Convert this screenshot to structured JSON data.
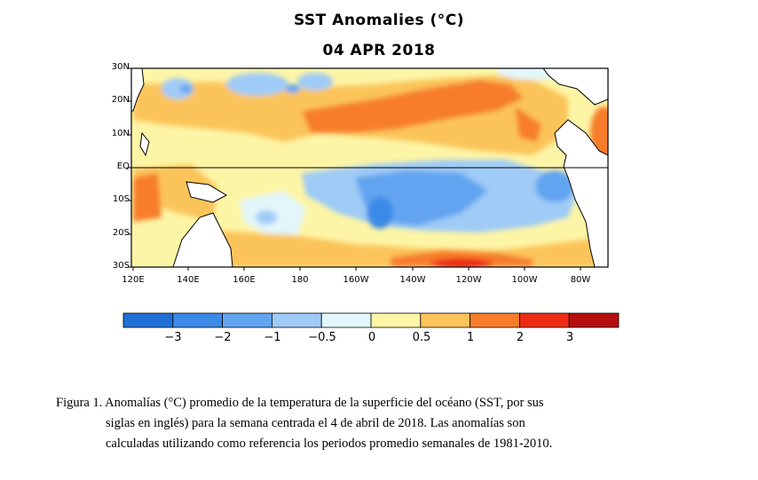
{
  "header": {
    "title": "SST Anomalies (°C)",
    "date": "04 APR 2018"
  },
  "map": {
    "lat_labels": [
      "30N",
      "20N",
      "10N",
      "EQ",
      "10S",
      "20S",
      "30S"
    ],
    "lon_labels": [
      "120E",
      "140E",
      "160E",
      "180",
      "160W",
      "140W",
      "120W",
      "100W",
      "80W"
    ]
  },
  "colorbar": {
    "colors": [
      "#1e6fd6",
      "#3b8ae8",
      "#62a4f0",
      "#9fcbf6",
      "#e2f6fb",
      "#fdf5a6",
      "#fbc45a",
      "#f77d2a",
      "#ed2c13",
      "#b50f0f"
    ],
    "labels": [
      "−3",
      "−2",
      "−1",
      "−0.5",
      "0",
      "0.5",
      "1",
      "2",
      "3"
    ]
  },
  "caption": {
    "line1": "Figura 1. Anomalías (°C) promedio de la temperatura de la superficie del océano (SST, por sus",
    "line2": "siglas en inglés) para la semana centrada el 4 de abril de 2018. Las anomalías son",
    "line3": "calculadas utilizando como referencia los periodos promedio semanales de 1981-2010."
  }
}
